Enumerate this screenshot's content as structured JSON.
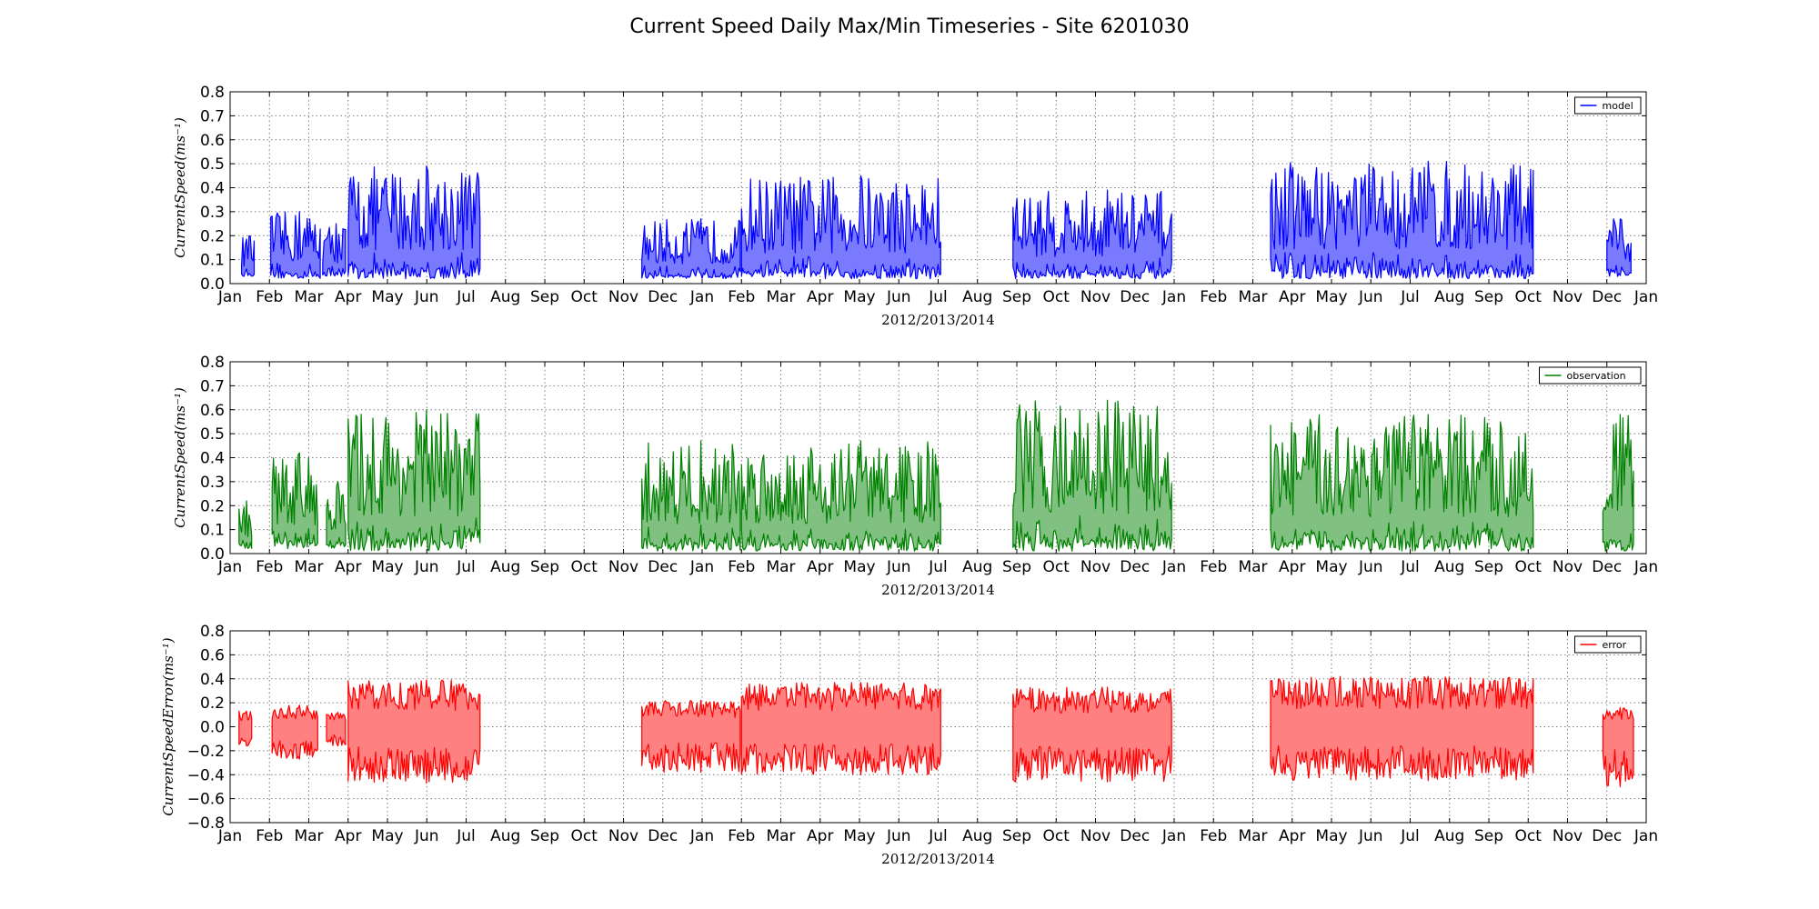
{
  "figure": {
    "title": "Current Speed Daily Max/Min Timeseries - Site 6201030"
  },
  "chart_data": [
    {
      "type": "area",
      "name": "model-panel",
      "title": "",
      "xlabel": "2012/2013/2014",
      "ylabel": "CurrentSpeed(ms⁻¹)",
      "ylim": [
        0.0,
        0.8
      ],
      "yticks": [
        "0.0",
        "0.1",
        "0.2",
        "0.3",
        "0.4",
        "0.5",
        "0.6",
        "0.7",
        "0.8"
      ],
      "xlim": [
        "2013-01-01",
        "2015-01-01"
      ],
      "xticks": [
        "Jan",
        "Feb",
        "Mar",
        "Apr",
        "May",
        "Jun",
        "Jul",
        "Aug",
        "Sep",
        "Oct",
        "Nov",
        "Dec",
        "Jan",
        "Feb",
        "Mar",
        "Apr",
        "May",
        "Jun",
        "Jul",
        "Aug",
        "Sep",
        "Oct",
        "Nov",
        "Dec",
        "Jan",
        "Feb",
        "Mar",
        "Apr",
        "May",
        "Jun",
        "Jul",
        "Aug",
        "Sep",
        "Oct",
        "Nov",
        "Dec",
        "Jan"
      ],
      "grid": true,
      "legend": {
        "label": "model",
        "placement": "upper-right"
      },
      "color": "#0000ff",
      "fill_color": "#7a7aff",
      "series": [
        {
          "name": "model",
          "segments": [
            {
              "start": "2012-01-10",
              "end": "2012-01-20",
              "min": 0.03,
              "max": 0.2
            },
            {
              "start": "2012-02-02",
              "end": "2012-03-10",
              "min": 0.02,
              "max": 0.3
            },
            {
              "start": "2012-03-12",
              "end": "2012-03-30",
              "min": 0.03,
              "max": 0.25
            },
            {
              "start": "2012-04-01",
              "end": "2012-07-12",
              "min": 0.02,
              "max": 0.49
            },
            {
              "start": "2012-11-15",
              "end": "2013-01-31",
              "min": 0.02,
              "max": 0.27
            },
            {
              "start": "2013-02-01",
              "end": "2013-07-03",
              "min": 0.02,
              "max": 0.45
            },
            {
              "start": "2013-08-29",
              "end": "2013-12-30",
              "min": 0.02,
              "max": 0.39
            },
            {
              "start": "2014-03-15",
              "end": "2014-10-05",
              "min": 0.02,
              "max": 0.51
            },
            {
              "start": "2014-12-01",
              "end": "2014-12-20",
              "min": 0.03,
              "max": 0.27
            }
          ]
        }
      ]
    },
    {
      "type": "area",
      "name": "observation-panel",
      "title": "",
      "xlabel": "2012/2013/2014",
      "ylabel": "CurrentSpeed(ms⁻¹)",
      "ylim": [
        0.0,
        0.8
      ],
      "yticks": [
        "0.0",
        "0.1",
        "0.2",
        "0.3",
        "0.4",
        "0.5",
        "0.6",
        "0.7",
        "0.8"
      ],
      "xlim": [
        "2013-01-01",
        "2015-01-01"
      ],
      "xticks": [
        "Jan",
        "Feb",
        "Mar",
        "Apr",
        "May",
        "Jun",
        "Jul",
        "Aug",
        "Sep",
        "Oct",
        "Nov",
        "Dec",
        "Jan",
        "Feb",
        "Mar",
        "Apr",
        "May",
        "Jun",
        "Jul",
        "Aug",
        "Sep",
        "Oct",
        "Nov",
        "Dec",
        "Jan",
        "Feb",
        "Mar",
        "Apr",
        "May",
        "Jun",
        "Jul",
        "Aug",
        "Sep",
        "Oct",
        "Nov",
        "Dec",
        "Jan"
      ],
      "grid": true,
      "legend": {
        "label": "observation",
        "placement": "upper-right"
      },
      "color": "#008000",
      "fill_color": "#80c080",
      "series": [
        {
          "name": "observation",
          "segments": [
            {
              "start": "2012-01-08",
              "end": "2012-01-18",
              "min": 0.02,
              "max": 0.22
            },
            {
              "start": "2012-02-03",
              "end": "2012-03-08",
              "min": 0.02,
              "max": 0.42
            },
            {
              "start": "2012-03-15",
              "end": "2012-03-30",
              "min": 0.02,
              "max": 0.3
            },
            {
              "start": "2012-04-01",
              "end": "2012-07-12",
              "min": 0.01,
              "max": 0.6
            },
            {
              "start": "2012-11-15",
              "end": "2013-01-31",
              "min": 0.01,
              "max": 0.47
            },
            {
              "start": "2013-02-01",
              "end": "2013-07-03",
              "min": 0.01,
              "max": 0.47
            },
            {
              "start": "2013-08-29",
              "end": "2013-12-30",
              "min": 0.01,
              "max": 0.64
            },
            {
              "start": "2014-03-15",
              "end": "2014-10-05",
              "min": 0.01,
              "max": 0.58
            },
            {
              "start": "2014-11-28",
              "end": "2014-12-22",
              "min": 0.01,
              "max": 0.58
            }
          ]
        }
      ]
    },
    {
      "type": "area",
      "name": "error-panel",
      "title": "",
      "xlabel": "2012/2013/2014",
      "ylabel": "CurrentSpeedError(ms⁻¹)",
      "ylim": [
        -0.8,
        0.8
      ],
      "yticks": [
        "−0.8",
        "−0.6",
        "−0.4",
        "−0.2",
        "0.0",
        "0.2",
        "0.4",
        "0.6",
        "0.8"
      ],
      "xlim": [
        "2013-01-01",
        "2015-01-01"
      ],
      "xticks": [
        "Jan",
        "Feb",
        "Mar",
        "Apr",
        "May",
        "Jun",
        "Jul",
        "Aug",
        "Sep",
        "Oct",
        "Nov",
        "Dec",
        "Jan",
        "Feb",
        "Mar",
        "Apr",
        "May",
        "Jun",
        "Jul",
        "Aug",
        "Sep",
        "Oct",
        "Nov",
        "Dec",
        "Jan",
        "Feb",
        "Mar",
        "Apr",
        "May",
        "Jun",
        "Jul",
        "Aug",
        "Sep",
        "Oct",
        "Nov",
        "Dec",
        "Jan"
      ],
      "grid": true,
      "legend": {
        "label": "error",
        "placement": "upper-right"
      },
      "color": "#ff0000",
      "fill_color": "#ff8080",
      "series": [
        {
          "name": "error",
          "segments": [
            {
              "start": "2012-01-08",
              "end": "2012-01-18",
              "min": -0.16,
              "max": 0.13
            },
            {
              "start": "2012-02-03",
              "end": "2012-03-08",
              "min": -0.27,
              "max": 0.18
            },
            {
              "start": "2012-03-15",
              "end": "2012-03-30",
              "min": -0.16,
              "max": 0.12
            },
            {
              "start": "2012-04-01",
              "end": "2012-07-12",
              "min": -0.47,
              "max": 0.39
            },
            {
              "start": "2012-11-15",
              "end": "2013-01-31",
              "min": -0.38,
              "max": 0.22
            },
            {
              "start": "2013-02-01",
              "end": "2013-07-03",
              "min": -0.4,
              "max": 0.37
            },
            {
              "start": "2013-08-29",
              "end": "2013-12-30",
              "min": -0.46,
              "max": 0.33
            },
            {
              "start": "2014-03-15",
              "end": "2014-10-05",
              "min": -0.45,
              "max": 0.42
            },
            {
              "start": "2014-11-28",
              "end": "2014-12-22",
              "min": -0.5,
              "max": 0.16
            }
          ]
        }
      ]
    }
  ]
}
